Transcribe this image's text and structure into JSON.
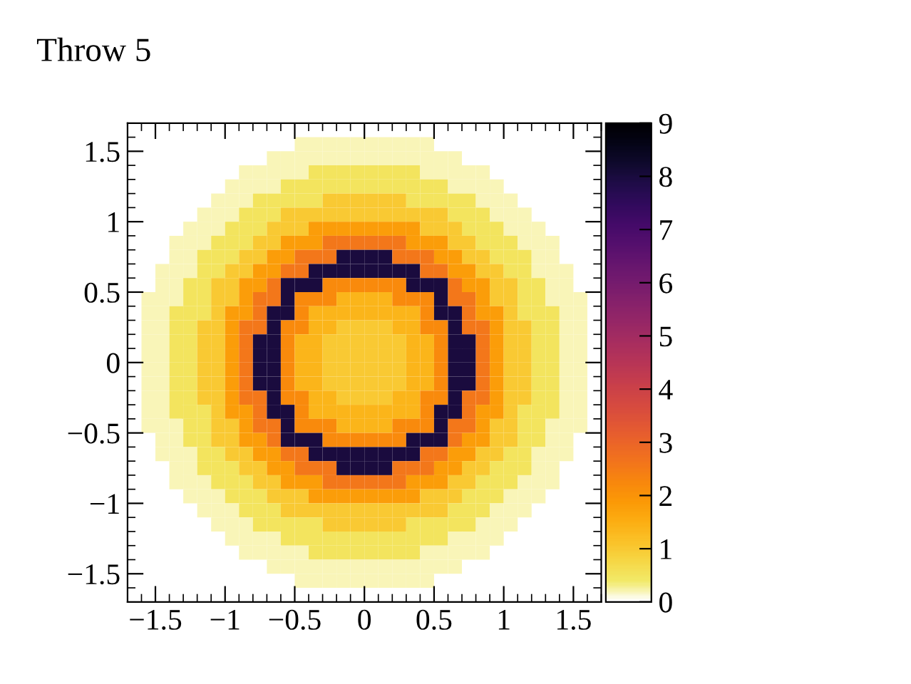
{
  "chart_data": {
    "type": "heatmap",
    "title": "Throw 5",
    "xlim": [
      -1.7,
      1.7
    ],
    "ylim": [
      -1.7,
      1.7
    ],
    "xticks": [
      {
        "value": -1.5,
        "label": "−1.5"
      },
      {
        "value": -1,
        "label": "−1"
      },
      {
        "value": -0.5,
        "label": "−0.5"
      },
      0,
      0.5,
      1,
      1.5
    ],
    "yticks": [
      {
        "value": -1.5,
        "label": "−1.5"
      },
      {
        "value": -1,
        "label": "−1"
      },
      {
        "value": -0.5,
        "label": "−0.5"
      },
      0,
      0.5,
      1,
      1.5
    ],
    "clim": [
      0,
      9
    ],
    "cticks": [
      0,
      1,
      2,
      3,
      4,
      5,
      6,
      7,
      8,
      9
    ],
    "cells": [
      [
        0,
        0,
        0,
        0,
        0,
        0,
        0,
        0,
        0,
        0,
        0,
        0,
        0,
        0,
        0,
        0,
        0,
        0,
        0,
        0,
        0,
        0,
        0,
        0,
        0,
        0,
        0,
        0,
        0,
        0,
        0,
        0,
        0,
        0
      ],
      [
        null,
        null,
        null,
        null,
        null,
        null,
        null,
        null,
        null,
        null,
        null,
        null,
        0.2,
        0.2,
        0.2,
        0.2,
        0.2,
        0.2,
        0.2,
        0.2,
        0.2,
        0.2,
        null,
        null,
        null,
        null,
        null,
        null,
        null,
        null,
        null,
        null,
        null,
        null
      ],
      [
        null,
        null,
        null,
        null,
        null,
        null,
        null,
        null,
        null,
        null,
        0.2,
        0.2,
        0.2,
        0.2,
        0.2,
        0.2,
        0.2,
        0.2,
        0.2,
        0.2,
        0.2,
        0.2,
        0.2,
        0.2,
        null,
        null,
        null,
        null,
        null,
        null,
        null,
        null,
        null,
        null
      ],
      [
        null,
        null,
        null,
        null,
        null,
        null,
        null,
        null,
        0.2,
        0.2,
        0.2,
        0.2,
        0.2,
        0.5,
        0.5,
        0.5,
        0.5,
        0.5,
        0.5,
        0.5,
        0.5,
        0.2,
        0.2,
        0.2,
        0.2,
        0.2,
        null,
        null,
        null,
        null,
        null,
        null,
        null,
        null
      ],
      [
        null,
        null,
        null,
        null,
        null,
        null,
        null,
        0.2,
        0.2,
        0.2,
        0.2,
        0.5,
        0.5,
        0.5,
        0.5,
        0.5,
        0.5,
        0.5,
        0.5,
        0.5,
        0.5,
        0.5,
        0.5,
        0.2,
        0.2,
        0.2,
        0.2,
        null,
        null,
        null,
        null,
        null,
        null,
        null
      ],
      [
        null,
        null,
        null,
        null,
        null,
        null,
        0.2,
        0.2,
        0.2,
        0.5,
        0.5,
        0.5,
        0.5,
        0.5,
        1,
        1,
        1,
        1,
        1,
        1,
        0.5,
        0.5,
        0.5,
        0.5,
        0.5,
        0.2,
        0.2,
        0.2,
        null,
        null,
        null,
        null,
        null,
        null
      ],
      [
        null,
        null,
        null,
        null,
        null,
        0.2,
        0.2,
        0.2,
        0.5,
        0.5,
        0.5,
        1,
        1,
        1,
        1,
        1,
        1,
        1,
        1,
        1,
        1,
        1,
        1,
        0.5,
        0.5,
        0.5,
        0.2,
        0.2,
        0.2,
        null,
        null,
        null,
        null,
        null
      ],
      [
        null,
        null,
        null,
        null,
        0.2,
        0.2,
        0.2,
        0.5,
        0.5,
        0.5,
        1,
        1,
        1,
        1.8,
        1.8,
        1.8,
        1.8,
        1.8,
        1.8,
        1.8,
        1.8,
        1,
        1,
        1,
        0.5,
        0.5,
        0.5,
        0.2,
        0.2,
        0.2,
        null,
        null,
        null,
        null
      ],
      [
        null,
        null,
        null,
        0.2,
        0.2,
        0.2,
        0.5,
        0.5,
        0.5,
        1,
        1,
        1.8,
        1.8,
        1.8,
        2.6,
        2.6,
        2.6,
        2.6,
        2.6,
        2.6,
        1.8,
        1.8,
        1.8,
        1,
        1,
        0.5,
        0.5,
        0.5,
        0.2,
        0.2,
        0.2,
        null,
        null,
        null
      ],
      [
        null,
        null,
        null,
        0.2,
        0.2,
        0.5,
        0.5,
        0.5,
        1,
        1,
        1.8,
        1.8,
        2.6,
        2.6,
        2.6,
        8,
        8,
        8,
        8,
        2.6,
        2.6,
        2.6,
        1.8,
        1.8,
        1,
        1,
        0.5,
        0.5,
        0.5,
        0.2,
        0.2,
        null,
        null,
        null
      ],
      [
        null,
        null,
        0.2,
        0.2,
        0.2,
        0.5,
        0.5,
        1,
        1,
        1.8,
        1.8,
        2.6,
        2.6,
        8,
        8,
        8,
        8,
        8,
        8,
        8,
        8,
        2.6,
        2.6,
        1.8,
        1.8,
        1,
        1,
        0.5,
        0.5,
        0.2,
        0.2,
        0.2,
        null,
        null
      ],
      [
        null,
        null,
        0.2,
        0.2,
        0.5,
        0.5,
        1,
        1,
        1.8,
        1.8,
        2.6,
        8,
        8,
        8,
        2.2,
        2.2,
        2.2,
        2.2,
        2.2,
        2.2,
        8,
        8,
        8,
        2.6,
        1.8,
        1.8,
        1,
        1,
        0.5,
        0.5,
        0.2,
        0.2,
        null,
        null
      ],
      [
        null,
        0.2,
        0.2,
        0.2,
        0.5,
        0.5,
        1,
        1,
        1.8,
        2.6,
        2.6,
        8,
        2.2,
        2.2,
        2.2,
        1.4,
        1.4,
        1.4,
        1.4,
        2.2,
        2.2,
        2.2,
        8,
        2.6,
        2.6,
        1.8,
        1,
        1,
        0.5,
        0.5,
        0.2,
        0.2,
        0.2,
        null
      ],
      [
        null,
        0.2,
        0.2,
        0.5,
        0.5,
        0.5,
        1,
        1.8,
        1.8,
        2.6,
        8,
        8,
        2.2,
        1.4,
        1.4,
        1.4,
        1.4,
        1.4,
        1.4,
        1.4,
        1.4,
        2.2,
        8,
        8,
        2.6,
        1.8,
        1.8,
        1,
        0.5,
        0.5,
        0.5,
        0.2,
        0.2,
        null
      ],
      [
        null,
        0.2,
        0.2,
        0.5,
        0.5,
        1,
        1,
        1.8,
        2.6,
        2.6,
        8,
        2.2,
        2.2,
        1.4,
        1.4,
        1,
        1,
        1,
        1,
        1.4,
        1.4,
        2.2,
        2.2,
        8,
        2.6,
        2.6,
        1.8,
        1,
        1,
        0.5,
        0.5,
        0.2,
        0.2,
        null
      ],
      [
        null,
        0.2,
        0.2,
        0.5,
        0.5,
        1,
        1,
        1.8,
        2.6,
        8,
        8,
        2.2,
        1.4,
        1.4,
        1,
        1,
        1,
        1,
        1,
        1,
        1.4,
        1.4,
        2.2,
        8,
        8,
        2.6,
        1.8,
        1,
        1,
        0.5,
        0.5,
        0.2,
        0.2,
        null
      ],
      [
        null,
        0.2,
        0.2,
        0.5,
        0.5,
        1,
        1,
        1.8,
        2.6,
        8,
        8,
        2.2,
        1.4,
        1.4,
        1,
        1,
        1,
        1,
        1,
        1,
        1.4,
        1.4,
        2.2,
        8,
        8,
        2.6,
        1.8,
        1,
        1,
        0.5,
        0.5,
        0.2,
        0.2,
        null
      ],
      [
        null,
        0.2,
        0.2,
        0.5,
        0.5,
        1,
        1,
        1.8,
        2.6,
        8,
        8,
        2.2,
        1.4,
        1.4,
        1,
        1,
        1,
        1,
        1,
        1,
        1.4,
        1.4,
        2.2,
        8,
        8,
        2.6,
        1.8,
        1,
        1,
        0.5,
        0.5,
        0.2,
        0.2,
        null
      ],
      [
        null,
        0.2,
        0.2,
        0.5,
        0.5,
        1,
        1,
        1.8,
        2.6,
        8,
        8,
        2.2,
        1.4,
        1.4,
        1,
        1,
        1,
        1,
        1,
        1,
        1.4,
        1.4,
        2.2,
        8,
        8,
        2.6,
        1.8,
        1,
        1,
        0.5,
        0.5,
        0.2,
        0.2,
        null
      ],
      [
        null,
        0.2,
        0.2,
        0.5,
        0.5,
        1,
        1,
        1.8,
        2.6,
        2.6,
        8,
        2.2,
        2.2,
        1.4,
        1.4,
        1,
        1,
        1,
        1,
        1.4,
        1.4,
        2.2,
        2.2,
        8,
        2.6,
        2.6,
        1.8,
        1,
        1,
        0.5,
        0.5,
        0.2,
        0.2,
        null
      ],
      [
        null,
        0.2,
        0.2,
        0.5,
        0.5,
        0.5,
        1,
        1.8,
        1.8,
        2.6,
        8,
        8,
        2.2,
        1.4,
        1.4,
        1.4,
        1.4,
        1.4,
        1.4,
        1.4,
        1.4,
        2.2,
        8,
        8,
        2.6,
        1.8,
        1.8,
        1,
        0.5,
        0.5,
        0.5,
        0.2,
        0.2,
        null
      ],
      [
        null,
        0.2,
        0.2,
        0.2,
        0.5,
        0.5,
        1,
        1,
        1.8,
        2.6,
        2.6,
        8,
        2.2,
        2.2,
        2.2,
        1.4,
        1.4,
        1.4,
        1.4,
        2.2,
        2.2,
        2.2,
        8,
        2.6,
        2.6,
        1.8,
        1,
        1,
        0.5,
        0.5,
        0.2,
        0.2,
        0.2,
        null
      ],
      [
        null,
        null,
        0.2,
        0.2,
        0.5,
        0.5,
        1,
        1,
        1.8,
        1.8,
        2.6,
        8,
        8,
        8,
        2.2,
        2.2,
        2.2,
        2.2,
        2.2,
        2.2,
        8,
        8,
        8,
        2.6,
        1.8,
        1.8,
        1,
        1,
        0.5,
        0.5,
        0.2,
        0.2,
        null,
        null
      ],
      [
        null,
        null,
        0.2,
        0.2,
        0.2,
        0.5,
        0.5,
        1,
        1,
        1.8,
        1.8,
        2.6,
        2.6,
        8,
        8,
        8,
        8,
        8,
        8,
        8,
        8,
        2.6,
        2.6,
        1.8,
        1.8,
        1,
        1,
        0.5,
        0.5,
        0.2,
        0.2,
        0.2,
        null,
        null
      ],
      [
        null,
        null,
        null,
        0.2,
        0.2,
        0.5,
        0.5,
        0.5,
        1,
        1,
        1.8,
        1.8,
        2.6,
        2.6,
        2.6,
        8,
        8,
        8,
        8,
        2.6,
        2.6,
        2.6,
        1.8,
        1.8,
        1,
        1,
        0.5,
        0.5,
        0.5,
        0.2,
        0.2,
        null,
        null,
        null
      ],
      [
        null,
        null,
        null,
        0.2,
        0.2,
        0.2,
        0.5,
        0.5,
        0.5,
        1,
        1,
        1.8,
        1.8,
        1.8,
        2.6,
        2.6,
        2.6,
        2.6,
        2.6,
        2.6,
        1.8,
        1.8,
        1.8,
        1,
        1,
        0.5,
        0.5,
        0.5,
        0.2,
        0.2,
        0.2,
        null,
        null,
        null
      ],
      [
        null,
        null,
        null,
        null,
        0.2,
        0.2,
        0.2,
        0.5,
        0.5,
        0.5,
        1,
        1,
        1,
        1.8,
        1.8,
        1.8,
        1.8,
        1.8,
        1.8,
        1.8,
        1.8,
        1,
        1,
        1,
        0.5,
        0.5,
        0.5,
        0.2,
        0.2,
        0.2,
        null,
        null,
        null,
        null
      ],
      [
        null,
        null,
        null,
        null,
        null,
        0.2,
        0.2,
        0.2,
        0.5,
        0.5,
        0.5,
        1,
        1,
        1,
        1,
        1,
        1,
        1,
        1,
        1,
        1,
        1,
        1,
        0.5,
        0.5,
        0.5,
        0.2,
        0.2,
        0.2,
        null,
        null,
        null,
        null,
        null
      ],
      [
        null,
        null,
        null,
        null,
        null,
        null,
        0.2,
        0.2,
        0.2,
        0.5,
        0.5,
        0.5,
        0.5,
        0.5,
        1,
        1,
        1,
        1,
        1,
        1,
        0.5,
        0.5,
        0.5,
        0.5,
        0.5,
        0.2,
        0.2,
        0.2,
        null,
        null,
        null,
        null,
        null,
        null
      ],
      [
        null,
        null,
        null,
        null,
        null,
        null,
        null,
        0.2,
        0.2,
        0.2,
        0.2,
        0.5,
        0.5,
        0.5,
        0.5,
        0.5,
        0.5,
        0.5,
        0.5,
        0.5,
        0.5,
        0.5,
        0.5,
        0.2,
        0.2,
        0.2,
        0.2,
        null,
        null,
        null,
        null,
        null,
        null,
        null
      ],
      [
        null,
        null,
        null,
        null,
        null,
        null,
        null,
        null,
        0.2,
        0.2,
        0.2,
        0.2,
        0.2,
        0.5,
        0.5,
        0.5,
        0.5,
        0.5,
        0.5,
        0.5,
        0.5,
        0.2,
        0.2,
        0.2,
        0.2,
        0.2,
        null,
        null,
        null,
        null,
        null,
        null,
        null,
        null
      ],
      [
        null,
        null,
        null,
        null,
        null,
        null,
        null,
        null,
        null,
        null,
        0.2,
        0.2,
        0.2,
        0.2,
        0.2,
        0.2,
        0.2,
        0.2,
        0.2,
        0.2,
        0.2,
        0.2,
        0.2,
        0.2,
        null,
        null,
        null,
        null,
        null,
        null,
        null,
        null,
        null,
        null
      ],
      [
        null,
        null,
        null,
        null,
        null,
        null,
        null,
        null,
        null,
        null,
        null,
        null,
        0.2,
        0.2,
        0.2,
        0.2,
        0.2,
        0.2,
        0.2,
        0.2,
        0.2,
        0.2,
        null,
        null,
        null,
        null,
        null,
        null,
        null,
        null,
        null,
        null,
        null,
        null
      ],
      [
        0,
        0,
        0,
        0,
        0,
        0,
        0,
        0,
        0,
        0,
        0,
        0,
        0,
        0,
        0,
        0,
        0,
        0,
        0,
        0,
        0,
        0,
        0,
        0,
        0,
        0,
        0,
        0,
        0,
        0,
        0,
        0,
        0,
        0
      ]
    ]
  }
}
